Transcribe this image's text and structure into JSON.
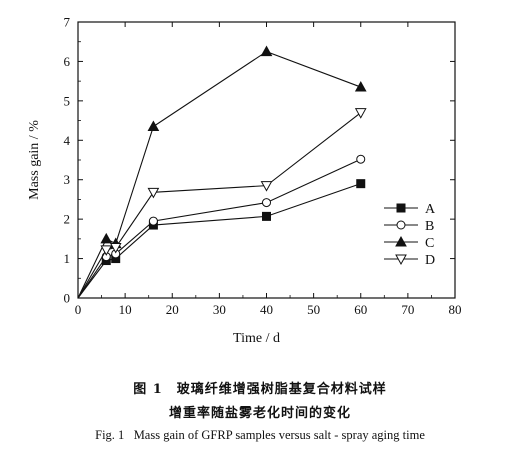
{
  "chart_data": {
    "type": "line",
    "xlabel": "Time / d",
    "ylabel": "Mass gain / %",
    "xlim": [
      0,
      80
    ],
    "ylim": [
      0,
      7
    ],
    "xticks": [
      "0",
      "10",
      "20",
      "30",
      "40",
      "50",
      "60",
      "70",
      "80"
    ],
    "yticks": [
      "0",
      "1",
      "2",
      "3",
      "4",
      "5",
      "6",
      "7"
    ],
    "grid": false,
    "legend_position": "right-middle",
    "series": [
      {
        "name": "A",
        "marker": "filled-square",
        "x": [
          0,
          6,
          8,
          16,
          40,
          60
        ],
        "y": [
          0,
          0.95,
          1.0,
          1.85,
          2.07,
          2.9
        ]
      },
      {
        "name": "B",
        "marker": "open-circle",
        "x": [
          0,
          6,
          8,
          16,
          40,
          60
        ],
        "y": [
          0,
          1.05,
          1.12,
          1.95,
          2.42,
          3.52
        ]
      },
      {
        "name": "C",
        "marker": "filled-triangle-up",
        "x": [
          0,
          6,
          8,
          16,
          40,
          60
        ],
        "y": [
          0,
          1.5,
          1.38,
          4.35,
          6.25,
          5.35
        ]
      },
      {
        "name": "D",
        "marker": "open-triangle-down",
        "x": [
          0,
          6,
          8,
          16,
          40,
          60
        ],
        "y": [
          0,
          1.22,
          1.28,
          2.68,
          2.85,
          4.7
        ]
      }
    ]
  },
  "caption": {
    "cn_line1": "图 1　玻璃纤维增强树脂基复合材料试样",
    "cn_line2": "增重率随盐雾老化时间的变化",
    "en_label": "Fig. 1",
    "en_text": "Mass gain of GFRP samples versus salt - spray aging time"
  }
}
